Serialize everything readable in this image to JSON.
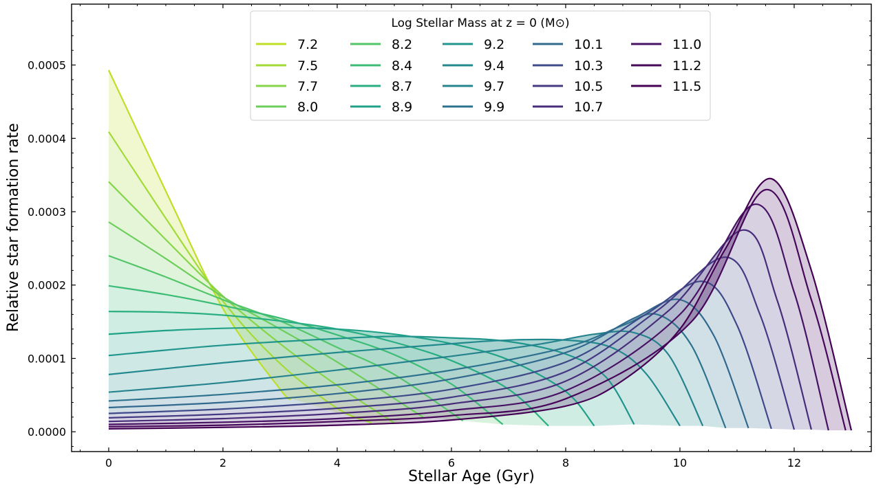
{
  "chart_data": {
    "type": "line",
    "xlabel": "Stellar Age (Gyr)",
    "ylabel": "Relative star formation rate",
    "xlim": [
      -0.65,
      13.35
    ],
    "ylim": [
      -2.7e-05,
      0.000583
    ],
    "xticks": [
      0,
      2,
      4,
      6,
      8,
      10,
      12
    ],
    "xtick_labels": [
      "0",
      "2",
      "4",
      "6",
      "8",
      "10",
      "12"
    ],
    "yticks": [
      0.0,
      0.0001,
      0.0002,
      0.0003,
      0.0004,
      0.0005
    ],
    "ytick_labels": [
      "0.0000",
      "0.0001",
      "0.0002",
      "0.0003",
      "0.0004",
      "0.0005"
    ],
    "grid": false,
    "legend": {
      "title": "Log Stellar Mass at z = 0 (M⊙)",
      "placement": "top-center",
      "columns": 5
    },
    "series": [
      {
        "name": "7.2",
        "color": "#bddf26",
        "x": [
          0,
          1,
          2,
          3,
          3.2
        ],
        "y": [
          0.000493,
          0.000328,
          0.000168,
          5.8e-05,
          4.5e-05
        ]
      },
      {
        "name": "7.5",
        "color": "#a2da37",
        "x": [
          0,
          1,
          2,
          3,
          4,
          4.6
        ],
        "y": [
          0.000409,
          0.000291,
          0.000178,
          9.3e-05,
          3.2e-05,
          1.2e-05
        ]
      },
      {
        "name": "7.7",
        "color": "#86d549",
        "x": [
          0,
          1,
          2,
          3,
          4,
          5.0
        ],
        "y": [
          0.000341,
          0.000262,
          0.000185,
          0.00012,
          6.3e-05,
          1.2e-05
        ]
      },
      {
        "name": "8.0",
        "color": "#6ccd5a",
        "x": [
          0,
          1,
          2,
          3,
          4,
          5.5
        ],
        "y": [
          0.000286,
          0.000236,
          0.000184,
          0.00014,
          9.5e-05,
          2e-05
        ]
      },
      {
        "name": "8.2",
        "color": "#52c569",
        "x": [
          0,
          1,
          2,
          3,
          4,
          5,
          6.2
        ],
        "y": [
          0.00024,
          0.000211,
          0.00018,
          0.000151,
          0.000115,
          7.8e-05,
          1.5e-05
        ]
      },
      {
        "name": "8.4",
        "color": "#3bbb75",
        "x": [
          0,
          1,
          2,
          3,
          4,
          5,
          6,
          6.9
        ],
        "y": [
          0.000199,
          0.000187,
          0.000172,
          0.000155,
          0.000132,
          0.000105,
          6.5e-05,
          1e-05
        ]
      },
      {
        "name": "8.7",
        "color": "#28ae80",
        "x": [
          0,
          1,
          2,
          3,
          4,
          5,
          6,
          7,
          7.7
        ],
        "y": [
          0.000164,
          0.000163,
          0.000159,
          0.000151,
          0.00014,
          0.000122,
          9.7e-05,
          5.8e-05,
          8e-06
        ]
      },
      {
        "name": "8.9",
        "color": "#1fa188",
        "x": [
          0,
          1,
          2,
          3,
          4,
          5,
          6,
          7,
          8,
          8.5
        ],
        "y": [
          0.000133,
          0.000138,
          0.000141,
          0.000142,
          0.00014,
          0.000133,
          0.00012,
          9.8e-05,
          5.5e-05,
          8e-06
        ]
      },
      {
        "name": "9.2",
        "color": "#1f958b",
        "x": [
          0,
          2,
          4,
          5,
          6,
          7,
          8,
          8.7,
          9.2
        ],
        "y": [
          0.000104,
          0.000118,
          0.000127,
          0.00013,
          0.000128,
          0.000123,
          0.000106,
          7.5e-05,
          1e-05
        ]
      },
      {
        "name": "9.4",
        "color": "#21888d",
        "x": [
          0,
          2,
          4,
          6,
          7,
          8,
          8.8,
          9.4,
          10.0
        ],
        "y": [
          7.8e-05,
          9.4e-05,
          0.000108,
          0.00012,
          0.000125,
          0.000125,
          0.000115,
          8e-05,
          8e-06
        ]
      },
      {
        "name": "9.7",
        "color": "#25838e",
        "x": [
          0,
          2,
          4,
          6,
          7.5,
          8.5,
          9.2,
          9.8,
          10.4
        ],
        "y": [
          5.4e-05,
          6.7e-05,
          8.4e-05,
          0.000103,
          0.000119,
          0.000133,
          0.000135,
          0.000105,
          8e-06
        ]
      },
      {
        "name": "9.9",
        "color": "#2c728e",
        "x": [
          0,
          2,
          4,
          6,
          8,
          9,
          9.6,
          10.2,
          10.8
        ],
        "y": [
          4.2e-05,
          5.1e-05,
          6.4e-05,
          8.4e-05,
          0.000115,
          0.000145,
          0.00016,
          0.000118,
          5e-06
        ]
      },
      {
        "name": "10.1",
        "color": "#31688e",
        "x": [
          0,
          2,
          4,
          6,
          8,
          9.2,
          10.0,
          10.6,
          11.2
        ],
        "y": [
          3.3e-05,
          4e-05,
          5.2e-05,
          7.2e-05,
          0.000108,
          0.000155,
          0.00018,
          0.00013,
          5e-06
        ]
      },
      {
        "name": "10.3",
        "color": "#3e4989",
        "x": [
          0,
          2,
          4,
          6,
          8,
          9.4,
          10.4,
          11.0,
          11.6
        ],
        "y": [
          2.5e-05,
          3.1e-05,
          4.1e-05,
          5.8e-05,
          9.5e-05,
          0.00016,
          0.000205,
          0.000145,
          4e-06
        ]
      },
      {
        "name": "10.5",
        "color": "#443a83",
        "x": [
          0,
          2,
          4,
          6,
          8,
          9.6,
          10.8,
          11.4,
          12.0
        ],
        "y": [
          1.9e-05,
          2.4e-05,
          3.2e-05,
          4.7e-05,
          8.2e-05,
          0.000165,
          0.000238,
          0.00016,
          3e-06
        ]
      },
      {
        "name": "10.7",
        "color": "#472c7a",
        "x": [
          0,
          2,
          4,
          6,
          8,
          9.8,
          11.1,
          11.7,
          12.3
        ],
        "y": [
          1.4e-05,
          1.8e-05,
          2.5e-05,
          3.8e-05,
          6.9e-05,
          0.000165,
          0.000275,
          0.00018,
          3e-06
        ]
      },
      {
        "name": "11.0",
        "color": "#471164",
        "x": [
          0,
          2,
          4,
          6,
          8,
          10.0,
          11.3,
          12.0,
          12.6
        ],
        "y": [
          1e-05,
          1.3e-05,
          1.8e-05,
          2.9e-05,
          5.6e-05,
          0.00016,
          0.00031,
          0.00019,
          2e-06
        ]
      },
      {
        "name": "11.2",
        "color": "#46075a",
        "x": [
          0,
          2,
          4,
          6,
          8,
          10.2,
          11.5,
          12.3,
          12.9
        ],
        "y": [
          7e-06,
          9e-06,
          1.4e-05,
          2.2e-05,
          4.5e-05,
          0.00015,
          0.00033,
          0.00018,
          2e-06
        ]
      },
      {
        "name": "11.5",
        "color": "#440154",
        "x": [
          0,
          2,
          4,
          6,
          8,
          9,
          10,
          10.8,
          11.6,
          12.3,
          13.0
        ],
        "y": [
          4e-06,
          6e-06,
          9e-06,
          1.6e-05,
          3.5e-05,
          7e-05,
          0.00014,
          0.00025,
          0.000345,
          0.00022,
          2e-06
        ]
      }
    ]
  }
}
